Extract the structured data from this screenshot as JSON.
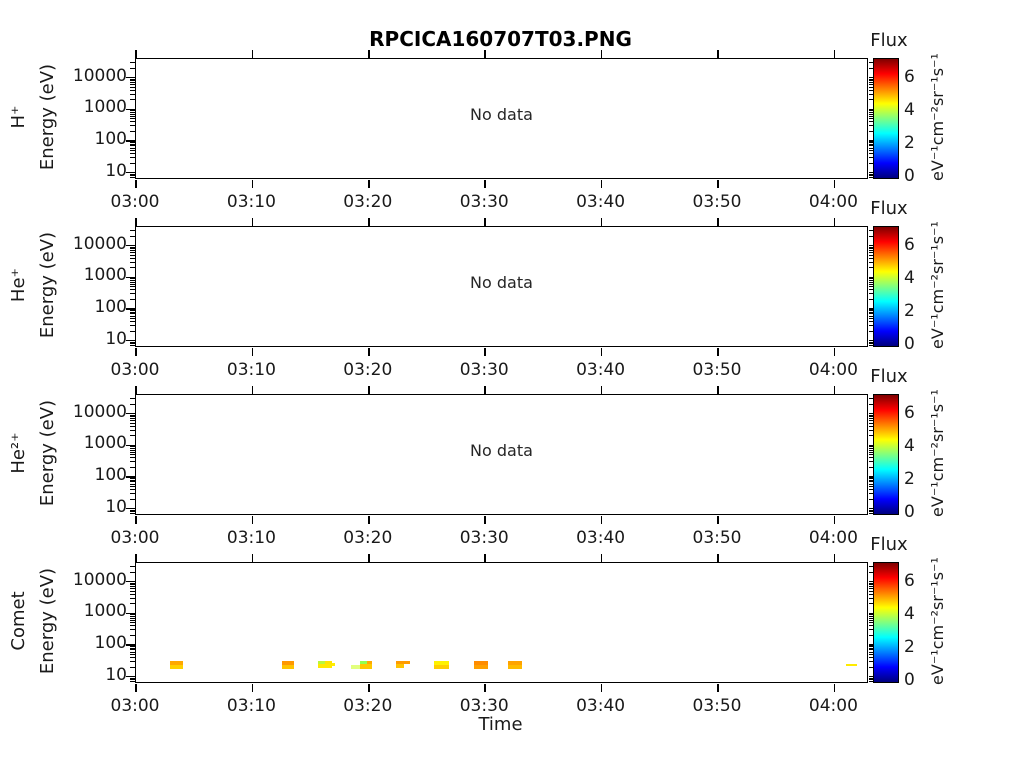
{
  "chart_data": {
    "type": "heatmap",
    "title": "RPCICA160707T03.PNG",
    "xlabel": "Time",
    "ylabel": "Energy (eV)",
    "y_scale": "log",
    "axes": {
      "x_tick_labels": [
        "03:00",
        "03:10",
        "03:20",
        "03:30",
        "03:40",
        "03:50",
        "04:00"
      ],
      "x_tick_minutes": [
        0,
        10,
        20,
        30,
        40,
        50,
        60
      ],
      "x_total_minutes": 62.8,
      "y_tick_values": [
        10,
        100,
        1000,
        10000
      ],
      "y_tick_labels": [
        "10",
        "100",
        "1000",
        "10000"
      ],
      "y_log_top": 4.587,
      "y_log_bottom": 0.833
    },
    "colorbar": {
      "label": "Flux",
      "units": "eV⁻¹cm⁻²sr⁻¹s⁻¹",
      "colormap": "jet",
      "range": [
        0,
        7.2
      ],
      "tick_values": [
        0,
        2,
        4,
        6
      ],
      "tick_labels": [
        "0",
        "2",
        "4",
        "6"
      ],
      "gradient_stops": [
        {
          "pos": 0,
          "color": "#00007F"
        },
        {
          "pos": 0.125,
          "color": "#0000FF"
        },
        {
          "pos": 0.25,
          "color": "#0080FF"
        },
        {
          "pos": 0.375,
          "color": "#00FFFF"
        },
        {
          "pos": 0.5,
          "color": "#80FF80"
        },
        {
          "pos": 0.625,
          "color": "#FFFF00"
        },
        {
          "pos": 0.75,
          "color": "#FF8000"
        },
        {
          "pos": 0.875,
          "color": "#FF0000"
        },
        {
          "pos": 1,
          "color": "#7F0000"
        }
      ]
    },
    "panels": [
      {
        "species": "H⁺",
        "status": "No data",
        "points": []
      },
      {
        "species": "He⁺",
        "status": "No data",
        "points": []
      },
      {
        "species": "He²⁺",
        "status": "No data",
        "points": []
      },
      {
        "species": "Comet",
        "status": "",
        "points": [
          {
            "t0": 2.9,
            "t1": 4.0,
            "e0": 24,
            "e1": 32,
            "flux": 5.1,
            "color": "#FFA800"
          },
          {
            "t0": 2.9,
            "t1": 4.0,
            "e0": 18,
            "e1": 24,
            "flux": 4.8,
            "color": "#FFD000"
          },
          {
            "t0": 12.5,
            "t1": 13.6,
            "e0": 24,
            "e1": 32,
            "flux": 5.2,
            "color": "#FF9800"
          },
          {
            "t0": 12.5,
            "t1": 13.6,
            "e0": 18,
            "e1": 24,
            "flux": 4.9,
            "color": "#FFC400"
          },
          {
            "t0": 15.6,
            "t1": 16.25,
            "e0": 25,
            "e1": 32,
            "flux": 4.1,
            "color": "#B9F73E"
          },
          {
            "t0": 16.25,
            "t1": 16.8,
            "e0": 25,
            "e1": 32,
            "flux": 4.6,
            "color": "#FFE300"
          },
          {
            "t0": 15.6,
            "t1": 16.8,
            "e0": 19,
            "e1": 25,
            "flux": 4.6,
            "color": "#FFE800"
          },
          {
            "t0": 16.8,
            "t1": 17.1,
            "e0": 21,
            "e1": 27,
            "flux": 4.5,
            "color": "#FFEE00"
          },
          {
            "t0": 18.5,
            "t1": 19.25,
            "e0": 18,
            "e1": 23,
            "flux": 4.3,
            "color": "#E2FF7D"
          },
          {
            "t0": 19.25,
            "t1": 19.85,
            "e0": 25,
            "e1": 32,
            "flux": 3.9,
            "color": "#90FF50"
          },
          {
            "t0": 19.25,
            "t1": 20.25,
            "e0": 18,
            "e1": 25,
            "flux": 4.9,
            "color": "#FFC800"
          },
          {
            "t0": 19.85,
            "t1": 20.25,
            "e0": 25,
            "e1": 32,
            "flux": 5.1,
            "color": "#FFAA00"
          },
          {
            "t0": 22.3,
            "t1": 23.5,
            "e0": 25,
            "e1": 32,
            "flux": 5.2,
            "color": "#FF9B00"
          },
          {
            "t0": 22.3,
            "t1": 23.0,
            "e0": 19,
            "e1": 25,
            "flux": 4.9,
            "color": "#FFC300"
          },
          {
            "t0": 25.6,
            "t1": 26.9,
            "e0": 24,
            "e1": 32,
            "flux": 4.5,
            "color": "#FFF200"
          },
          {
            "t0": 25.6,
            "t1": 26.9,
            "e0": 18,
            "e1": 24,
            "flux": 4.8,
            "color": "#FFCE00"
          },
          {
            "t0": 29.0,
            "t1": 30.2,
            "e0": 24,
            "e1": 32,
            "flux": 5.4,
            "color": "#FF8C00"
          },
          {
            "t0": 29.0,
            "t1": 30.2,
            "e0": 18,
            "e1": 24,
            "flux": 5.2,
            "color": "#FFA000"
          },
          {
            "t0": 32.0,
            "t1": 33.2,
            "e0": 24,
            "e1": 32,
            "flux": 5.2,
            "color": "#FFA300"
          },
          {
            "t0": 32.0,
            "t1": 33.2,
            "e0": 18,
            "e1": 24,
            "flux": 5.0,
            "color": "#FFBB00"
          },
          {
            "t0": 61.0,
            "t1": 61.9,
            "e0": 21,
            "e1": 26,
            "flux": 4.6,
            "color": "#FFEB00"
          }
        ]
      }
    ]
  }
}
